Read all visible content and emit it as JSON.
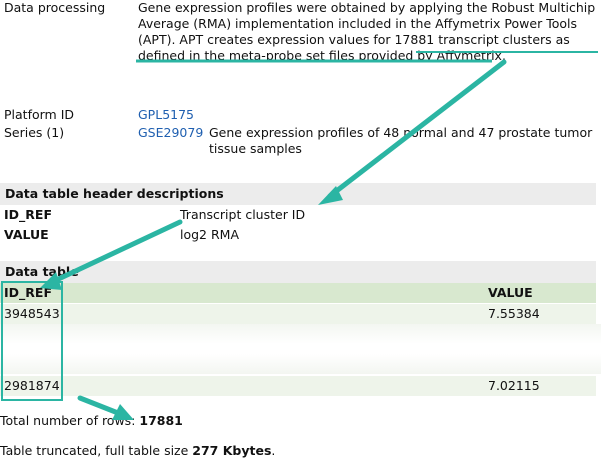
{
  "data_processing": {
    "label": "Data processing",
    "line1": "Gene expression profiles were obtained by applying the Robust Multichip",
    "line2": "Average (RMA) implementation included in the Affymetrix Power Tools",
    "line3": "(APT). APT creates expression values for 17881 transcript clusters as",
    "line4": "defined in the meta-probe set files provided by Affymetrix."
  },
  "platform": {
    "label": "Platform ID",
    "value": "GPL5175"
  },
  "series": {
    "label": "Series (1)",
    "id": "GSE29079",
    "title_line1": "Gene expression profiles of 48 normal and 47 prostate tumor",
    "title_line2": "tissue samples"
  },
  "header_desc": {
    "title": "Data table header descriptions",
    "rows": [
      {
        "key": "ID_REF",
        "value": "Transcript cluster ID"
      },
      {
        "key": "VALUE",
        "value": "log2 RMA"
      }
    ]
  },
  "data_table": {
    "title": "Data table",
    "columns": [
      "ID_REF",
      "VALUE"
    ],
    "rows": [
      {
        "id": "3948543",
        "value": "7.55384"
      },
      {
        "id": "2981874",
        "value": "7.02115"
      }
    ]
  },
  "summary": {
    "rows_prefix": "Total number of rows: ",
    "rows_count": "17881",
    "trunc_prefix": "Table truncated, full table size ",
    "trunc_size": "277 Kbytes",
    "trunc_suffix": "."
  },
  "colors": {
    "arrow": "#2bb5a3",
    "link": "#1f5fb0",
    "table_header": "#d8e8cf"
  }
}
